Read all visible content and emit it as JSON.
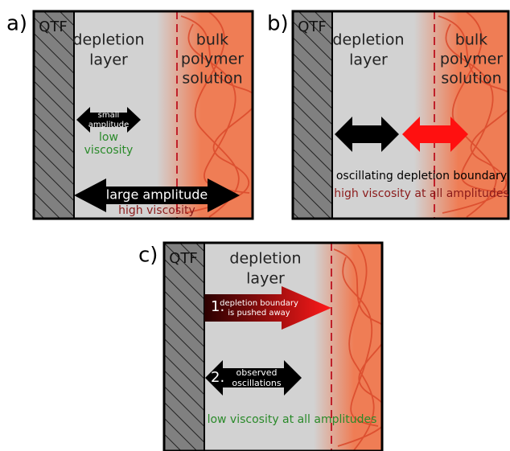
{
  "panels": [
    {
      "label": "a)",
      "qtf": "QTF",
      "depletion_layer": [
        "depletion",
        "layer"
      ],
      "bulk": [
        "bulk",
        "polymer",
        "solution"
      ],
      "arrow_small": [
        "small",
        "amplitude"
      ],
      "low_viscosity": [
        "low",
        "viscosity"
      ],
      "arrow_large": "large amplitude",
      "high_viscosity": "high viscosity"
    },
    {
      "label": "b)",
      "qtf": "QTF",
      "depletion_layer": [
        "depletion",
        "layer"
      ],
      "bulk": [
        "bulk",
        "polymer",
        "solution"
      ],
      "boundary": "oscillating depletion boundary",
      "high_viscosity": "high viscosity at all amplitudes"
    },
    {
      "label": "c)",
      "qtf": "QTF",
      "depletion_layer": [
        "depletion",
        "layer"
      ],
      "step1_number": "1.",
      "step1": [
        "depletion boundary",
        "is pushed away"
      ],
      "step2_number": "2.",
      "step2": [
        "observed",
        "oscillations"
      ],
      "low_viscosity": "low viscosity at all amplitudes"
    }
  ]
}
